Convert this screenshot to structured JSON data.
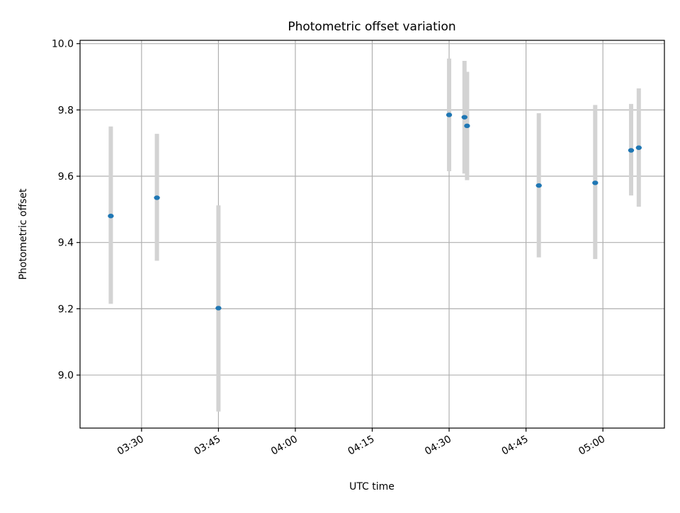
{
  "chart_data": {
    "type": "scatter",
    "title": "Photometric offset variation",
    "xlabel": "UTC time",
    "ylabel": "Photometric offset",
    "xlim": [
      "03:18",
      "05:12"
    ],
    "ylim": [
      8.84,
      10.01
    ],
    "xticks": [
      "03:30",
      "03:45",
      "04:00",
      "04:15",
      "04:30",
      "04:45",
      "05:00"
    ],
    "yticks": [
      "9.0",
      "9.2",
      "9.4",
      "9.6",
      "9.8",
      "10.0"
    ],
    "grid": true,
    "series": [
      {
        "points": [
          {
            "x": "03:24",
            "y": 9.48,
            "yerr_low": 9.215,
            "yerr_high": 9.75
          },
          {
            "x": "03:33",
            "y": 9.535,
            "yerr_low": 9.345,
            "yerr_high": 9.728
          },
          {
            "x": "03:45",
            "y": 9.202,
            "yerr_low": 8.89,
            "yerr_high": 9.512
          },
          {
            "x": "04:30",
            "y": 9.785,
            "yerr_low": 9.615,
            "yerr_high": 9.955
          },
          {
            "x": "04:33",
            "y": 9.778,
            "yerr_low": 9.608,
            "yerr_high": 9.948
          },
          {
            "x": "04:33.5",
            "y": 9.752,
            "yerr_low": 9.588,
            "yerr_high": 9.915
          },
          {
            "x": "04:47.5",
            "y": 9.572,
            "yerr_low": 9.355,
            "yerr_high": 9.79
          },
          {
            "x": "04:58.5",
            "y": 9.58,
            "yerr_low": 9.35,
            "yerr_high": 9.815
          },
          {
            "x": "05:05.5",
            "y": 9.678,
            "yerr_low": 9.542,
            "yerr_high": 9.818
          },
          {
            "x": "05:07",
            "y": 9.686,
            "yerr_low": 9.508,
            "yerr_high": 9.865
          }
        ]
      }
    ],
    "colors": {
      "marker": "#1f77b4",
      "errorbar": "#d3d3d3",
      "grid": "#b0b0b0"
    }
  }
}
